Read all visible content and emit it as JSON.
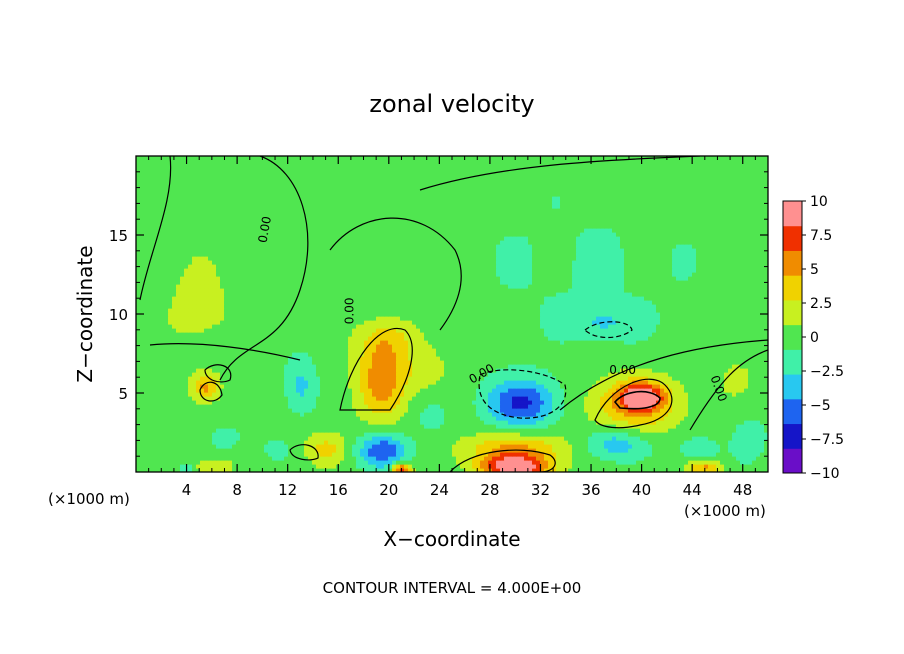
{
  "chart_data": {
    "type": "heatmap",
    "title": "zonal velocity",
    "xlabel": "X−coordinate",
    "ylabel": "Z−coordinate",
    "x_unit": "(×1000 m)",
    "x_unit_right": "(×1000 m)",
    "footer": "CONTOUR INTERVAL = 4.000E+00",
    "xlim": [
      0,
      50
    ],
    "ylim": [
      0,
      20
    ],
    "x_ticks": [
      {
        "value": 4,
        "label": "4"
      },
      {
        "value": 8,
        "label": "8"
      },
      {
        "value": 12,
        "label": "12"
      },
      {
        "value": 16,
        "label": "16"
      },
      {
        "value": 20,
        "label": "20"
      },
      {
        "value": 24,
        "label": "24"
      },
      {
        "value": 28,
        "label": "28"
      },
      {
        "value": 32,
        "label": "32"
      },
      {
        "value": 36,
        "label": "36"
      },
      {
        "value": 40,
        "label": "40"
      },
      {
        "value": 44,
        "label": "44"
      },
      {
        "value": 48,
        "label": "48"
      }
    ],
    "y_ticks": [
      {
        "value": 5,
        "label": "5"
      },
      {
        "value": 10,
        "label": "10"
      },
      {
        "value": 15,
        "label": "15"
      }
    ],
    "colorbar": {
      "min": -10,
      "max": 10,
      "ticks": [
        {
          "value": 10,
          "label": "10"
        },
        {
          "value": 7.5,
          "label": "7.5"
        },
        {
          "value": 5,
          "label": "5"
        },
        {
          "value": 2.5,
          "label": "2.5"
        },
        {
          "value": 0,
          "label": "0"
        },
        {
          "value": -2.5,
          "label": "−2.5"
        },
        {
          "value": -5,
          "label": "−5"
        },
        {
          "value": -7.5,
          "label": "−7.5"
        },
        {
          "value": -10,
          "label": "−10"
        }
      ],
      "colors": [
        "#6a0ec8",
        "#1515c8",
        "#1e64f0",
        "#28c8f0",
        "#40f0a8",
        "#50e650",
        "#c8f020",
        "#f0d200",
        "#f08c00",
        "#f03000",
        "#ff9090"
      ]
    },
    "contour_labels": [
      {
        "text": "0.00",
        "x": 10.5,
        "z": 15.3,
        "angle": -80
      },
      {
        "text": "0.00",
        "x": 17.2,
        "z": 10.2,
        "angle": -90
      },
      {
        "text": "0.00",
        "x": 27.5,
        "z": 6.0,
        "angle": -30
      },
      {
        "text": "0.00",
        "x": 38.5,
        "z": 6.2,
        "angle": 0
      },
      {
        "text": "0.00",
        "x": 45.8,
        "z": 5.2,
        "angle": 70
      }
    ],
    "features": [
      {
        "x": 5.0,
        "z": 10.5,
        "w": 6.0,
        "h": 7.0,
        "v": 1.8
      },
      {
        "x": 5.5,
        "z": 5.4,
        "w": 2.0,
        "h": 1.6,
        "v": 5.5
      },
      {
        "x": 7.0,
        "z": 2.2,
        "w": 2.5,
        "h": 1.5,
        "v": -2.5
      },
      {
        "x": 6.0,
        "z": 0.3,
        "w": 3.0,
        "h": 1.2,
        "v": 3.5
      },
      {
        "x": 4.0,
        "z": 0.2,
        "w": 1.5,
        "h": 0.8,
        "v": -3.0
      },
      {
        "x": 13.0,
        "z": 5.5,
        "w": 2.5,
        "h": 3.5,
        "v": -4.0
      },
      {
        "x": 11.0,
        "z": 1.5,
        "w": 3.5,
        "h": 2.0,
        "v": -1.5
      },
      {
        "x": 15.0,
        "z": 1.5,
        "w": 3.5,
        "h": 2.0,
        "v": 4.0
      },
      {
        "x": 19.5,
        "z": 6.0,
        "w": 4.0,
        "h": 5.0,
        "v": 7.5
      },
      {
        "x": 20.0,
        "z": 8.5,
        "w": 5.0,
        "h": 2.5,
        "v": 3.0
      },
      {
        "x": 19.5,
        "z": 1.4,
        "w": 4.0,
        "h": 2.2,
        "v": -7.5
      },
      {
        "x": 21.0,
        "z": 0.2,
        "w": 1.5,
        "h": 0.8,
        "v": 10.0
      },
      {
        "x": 23.5,
        "z": 3.5,
        "w": 3.0,
        "h": 2.5,
        "v": -1.5
      },
      {
        "x": 23.0,
        "z": 6.5,
        "w": 3.0,
        "h": 2.5,
        "v": 3.0
      },
      {
        "x": 30.5,
        "z": 4.4,
        "w": 5.5,
        "h": 3.0,
        "v": -8.0
      },
      {
        "x": 30.0,
        "z": 1.5,
        "w": 8.0,
        "h": 2.0,
        "v": 6.0
      },
      {
        "x": 30.0,
        "z": 0.3,
        "w": 5.5,
        "h": 1.5,
        "v": 12.0
      },
      {
        "x": 38.0,
        "z": 1.8,
        "w": 5.0,
        "h": 2.0,
        "v": -5.0
      },
      {
        "x": 39.5,
        "z": 4.4,
        "w": 7.0,
        "h": 3.5,
        "v": 7.0
      },
      {
        "x": 40.0,
        "z": 4.8,
        "w": 3.0,
        "h": 1.4,
        "v": 11.0
      },
      {
        "x": 37.0,
        "z": 9.5,
        "w": 5.0,
        "h": 2.0,
        "v": -3.0
      },
      {
        "x": 35.5,
        "z": 13.0,
        "w": 30.0,
        "h": 14.0,
        "v": -1.2
      },
      {
        "x": 44.5,
        "z": 1.5,
        "w": 3.0,
        "h": 1.5,
        "v": -3.0
      },
      {
        "x": 45.0,
        "z": 0.3,
        "w": 2.5,
        "h": 1.0,
        "v": 6.0
      },
      {
        "x": 48.5,
        "z": 2.0,
        "w": 3.0,
        "h": 3.0,
        "v": -2.5
      },
      {
        "x": 47.5,
        "z": 6.0,
        "w": 3.0,
        "h": 2.5,
        "v": 2.0
      },
      {
        "x": 9.0,
        "z": 16.0,
        "w": 5.0,
        "h": 4.0,
        "v": 0.8
      }
    ]
  }
}
